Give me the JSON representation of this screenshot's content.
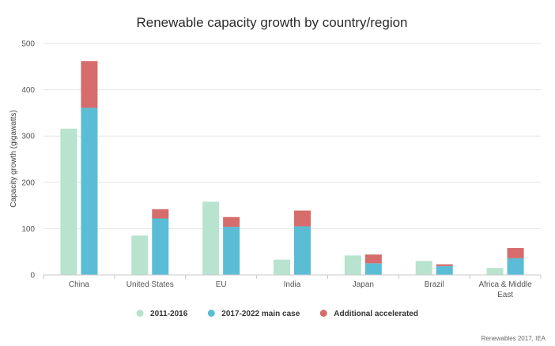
{
  "chart_data": {
    "type": "bar",
    "title": "Renewable capacity growth by country/region",
    "ylabel": "Capacity growth (gigawatts)",
    "xlabel": "",
    "ylim": [
      0,
      500
    ],
    "yticks": [
      0,
      100,
      200,
      300,
      400,
      500
    ],
    "categories": [
      [
        "China"
      ],
      [
        "United States"
      ],
      [
        "EU"
      ],
      [
        "India"
      ],
      [
        "Japan"
      ],
      [
        "Brazil"
      ],
      [
        "Africa & Middle",
        "East"
      ]
    ],
    "series": [
      {
        "name": "2011-2016",
        "color": "#b7e3cf",
        "stack": "a",
        "values": [
          316,
          85,
          158,
          33,
          42,
          30,
          15
        ]
      },
      {
        "name": "2017-2022 main case",
        "color": "#5bbcd6",
        "stack": "b",
        "values": [
          361,
          122,
          104,
          105,
          25,
          19,
          36
        ]
      },
      {
        "name": "Additional accelerated",
        "color": "#d66c6c",
        "stack": "b",
        "values": [
          101,
          20,
          21,
          34,
          19,
          4,
          22
        ]
      }
    ],
    "grid": true,
    "legend_position": "bottom-center"
  },
  "source": "Renewables 2017, IEA"
}
